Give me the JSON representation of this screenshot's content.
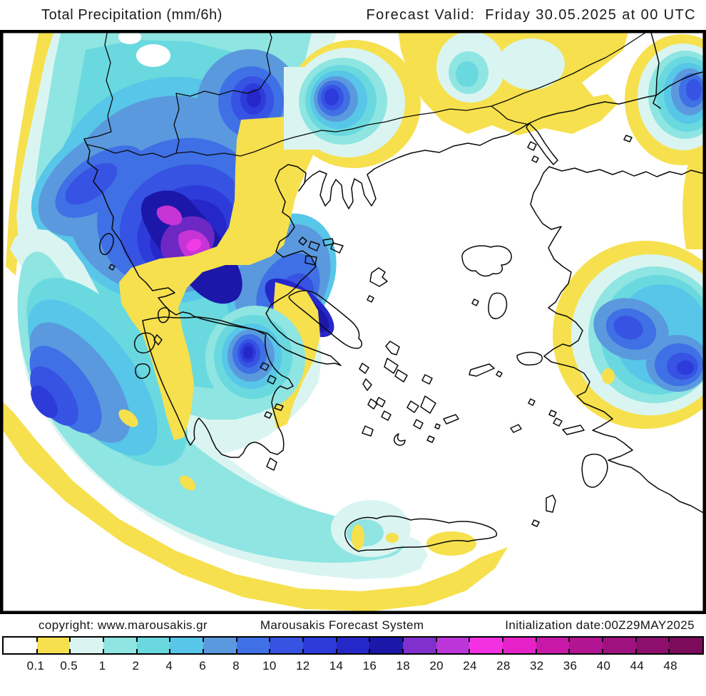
{
  "header": {
    "title": "Total Precipitation (mm/6h)",
    "forecast_valid": "Forecast Valid:  Friday 30.05.2025 at 00 UTC"
  },
  "footer": {
    "copyright": "copyright: www.marousakis.gr",
    "system_name": "Marousakis Forecast System",
    "initialization": "Initialization date:00Z29MAY2025"
  },
  "colorbar": {
    "units": "mm/6h",
    "tick_labels": [
      "0.1",
      "0.5",
      "1",
      "2",
      "4",
      "6",
      "8",
      "10",
      "12",
      "14",
      "16",
      "18",
      "20",
      "24",
      "28",
      "32",
      "36",
      "40",
      "44",
      "48"
    ],
    "segment_colors": [
      "#ffffff",
      "#f6e04d",
      "#daf5f1",
      "#8fe5e1",
      "#69d9df",
      "#57c6e8",
      "#5b99de",
      "#3f70e5",
      "#3653e3",
      "#2d3bda",
      "#2627c9",
      "#1c17a9",
      "#7f30cd",
      "#bb35d8",
      "#f331e2",
      "#e522c8",
      "#c818a8",
      "#b31592",
      "#a01180",
      "#8e0e6e",
      "#7c0b5c"
    ]
  },
  "map": {
    "accent_heavy_rain": "#1c17a9",
    "accent_extreme_rain": "#f23be4",
    "land_outline_color": "#0a0a0a"
  }
}
